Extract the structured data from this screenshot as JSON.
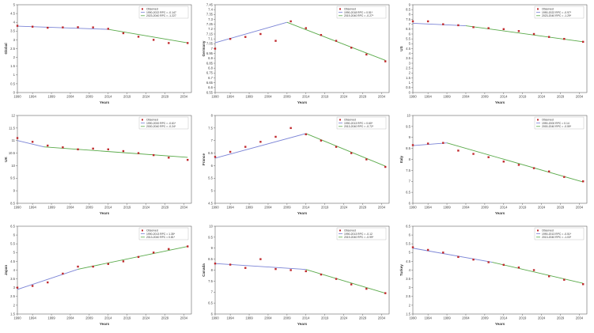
{
  "colors": {
    "blue": "#7b84d6",
    "green": "#5aaa4a",
    "red": "#c0282c",
    "axis": "#444444",
    "grid": "#d9d9d9"
  },
  "chart_data": [
    {
      "type": "line",
      "ylabel": "Global",
      "xlabel": "Years",
      "xlim": [
        1990,
        2036
      ],
      "ylim": [
        0,
        5
      ],
      "x_ticks": [
        1990,
        1994,
        1999,
        2004,
        2009,
        2014,
        2019,
        2024,
        2029,
        2034
      ],
      "y_ticks": [
        0,
        0.5,
        1,
        1.5,
        2,
        2.5,
        3,
        3.5,
        4,
        4.5,
        5
      ],
      "observed": {
        "x": [
          1990,
          1994,
          1998,
          2002,
          2006,
          2010,
          2014,
          2018,
          2022,
          2026,
          2030,
          2035
        ],
        "y": [
          3.8,
          3.75,
          3.69,
          3.71,
          3.72,
          3.71,
          3.63,
          3.38,
          3.18,
          3.0,
          2.82,
          2.82
        ]
      },
      "fit_segments": [
        {
          "x": [
            1990,
            2014
          ],
          "y": [
            3.78,
            3.6
          ]
        },
        {
          "x": [
            2014,
            2035
          ],
          "y": [
            3.6,
            2.83
          ]
        }
      ],
      "legend": [
        "Observed",
        "1990-2022 RPC = -0.147",
        "2023-2040 RPC = -1.227"
      ]
    },
    {
      "type": "line",
      "ylabel": "Germany",
      "xlabel": "Years",
      "xlim": [
        1990,
        2036
      ],
      "ylim": [
        6.55,
        7.45
      ],
      "x_ticks": [
        1990,
        1994,
        1999,
        2004,
        2009,
        2014,
        2019,
        2024,
        2029,
        2034
      ],
      "y_ticks": [
        6.55,
        6.6,
        6.65,
        6.7,
        6.75,
        6.8,
        6.85,
        6.9,
        6.95,
        7.0,
        7.05,
        7.1,
        7.15,
        7.2,
        7.25,
        7.3,
        7.35,
        7.4,
        7.45
      ],
      "observed": {
        "x": [
          1990,
          1994,
          1998,
          2002,
          2006,
          2010,
          2014,
          2018,
          2022,
          2026,
          2030,
          2035
        ],
        "y": [
          7.0,
          7.1,
          7.12,
          7.15,
          7.08,
          7.28,
          7.21,
          7.14,
          7.08,
          7.01,
          6.94,
          6.87
        ]
      },
      "fit_segments": [
        {
          "x": [
            1990,
            2009
          ],
          "y": [
            7.06,
            7.27
          ]
        },
        {
          "x": [
            2009,
            2035
          ],
          "y": [
            7.27,
            6.88
          ]
        }
      ],
      "legend": [
        "Observed",
        "1990-2018 RPC = 0.51*",
        "2019-2040 RPC = -0.27*"
      ]
    },
    {
      "type": "line",
      "ylabel": "US",
      "xlabel": "Years",
      "xlim": [
        1990,
        2036
      ],
      "ylim": [
        0,
        9
      ],
      "x_ticks": [
        1990,
        1994,
        1999,
        2004,
        2009,
        2014,
        2019,
        2024,
        2029,
        2034
      ],
      "y_ticks": [
        0,
        0.5,
        1,
        1.5,
        2,
        2.5,
        3,
        3.5,
        4,
        4.5,
        5,
        5.5,
        6,
        6.5,
        7,
        7.5,
        8,
        8.5,
        9
      ],
      "observed": {
        "x": [
          1990,
          1994,
          1998,
          2002,
          2006,
          2010,
          2014,
          2018,
          2022,
          2026,
          2030,
          2035
        ],
        "y": [
          7.3,
          7.3,
          7.0,
          6.9,
          6.7,
          6.6,
          6.5,
          6.3,
          6.0,
          5.7,
          5.5,
          5.2
        ]
      },
      "fit_segments": [
        {
          "x": [
            1990,
            2004
          ],
          "y": [
            7.1,
            6.85
          ]
        },
        {
          "x": [
            2004,
            2035
          ],
          "y": [
            6.85,
            5.2
          ]
        }
      ],
      "legend": [
        "Observed",
        "1990-2022 RPC = -0.97*",
        "2023-2040 RPC = -1.29*"
      ]
    },
    {
      "type": "line",
      "ylabel": "UK",
      "xlabel": "Years",
      "xlim": [
        1990,
        2036
      ],
      "ylim": [
        8.5,
        12
      ],
      "x_ticks": [
        1990,
        1994,
        1999,
        2004,
        2009,
        2014,
        2019,
        2024,
        2029,
        2034
      ],
      "y_ticks": [
        8.5,
        9,
        9.5,
        10,
        10.5,
        11,
        11.5,
        12
      ],
      "observed": {
        "x": [
          1990,
          1994,
          1998,
          2002,
          2006,
          2010,
          2014,
          2018,
          2022,
          2026,
          2030,
          2035
        ],
        "y": [
          11.1,
          10.95,
          10.8,
          10.73,
          10.65,
          10.68,
          10.65,
          10.58,
          10.5,
          10.42,
          10.32,
          10.23
        ]
      },
      "fit_segments": [
        {
          "x": [
            1990,
            1997
          ],
          "y": [
            11.0,
            10.75
          ]
        },
        {
          "x": [
            1997,
            2035
          ],
          "y": [
            10.75,
            10.33
          ]
        }
      ],
      "legend": [
        "Observed",
        "1990-2000 RPC = -0.61*",
        "2000-2040 RPC = -0.24*"
      ]
    },
    {
      "type": "line",
      "ylabel": "France",
      "xlabel": "Years",
      "xlim": [
        1990,
        2036
      ],
      "ylim": [
        4.5,
        8
      ],
      "x_ticks": [
        1990,
        1994,
        1999,
        2004,
        2009,
        2014,
        2019,
        2024,
        2029,
        2034
      ],
      "y_ticks": [
        4.5,
        5,
        5.5,
        6,
        6.5,
        7,
        7.5,
        8
      ],
      "observed": {
        "x": [
          1990,
          1994,
          1998,
          2002,
          2006,
          2010,
          2014,
          2018,
          2022,
          2026,
          2030,
          2035
        ],
        "y": [
          6.35,
          6.55,
          6.75,
          6.95,
          7.15,
          7.5,
          7.25,
          7.0,
          6.75,
          6.5,
          6.25,
          5.95
        ]
      },
      "fit_segments": [
        {
          "x": [
            1990,
            2014
          ],
          "y": [
            6.3,
            7.28
          ]
        },
        {
          "x": [
            2014,
            2035
          ],
          "y": [
            7.28,
            5.98
          ]
        }
      ],
      "legend": [
        "Observed",
        "1990-2013 RPC = 0.60*",
        "2013-2040 RPC = -0.72*"
      ]
    },
    {
      "type": "line",
      "ylabel": "Italy",
      "xlabel": "Years",
      "xlim": [
        1990,
        2036
      ],
      "ylim": [
        6.0,
        10.0
      ],
      "x_ticks": [
        1990,
        1994,
        1999,
        2004,
        2009,
        2014,
        2019,
        2024,
        2029,
        2034
      ],
      "y_ticks": [
        6.0,
        6.5,
        7.0,
        7.5,
        8.0,
        8.5,
        9.0,
        9.5,
        10.0
      ],
      "observed": {
        "x": [
          1990,
          1994,
          1998,
          2002,
          2006,
          2010,
          2014,
          2018,
          2022,
          2026,
          2030,
          2035
        ],
        "y": [
          8.65,
          8.72,
          8.75,
          8.4,
          8.25,
          8.1,
          7.9,
          7.75,
          7.6,
          7.45,
          7.2,
          7.0
        ]
      },
      "fit_segments": [
        {
          "x": [
            1990,
            1999
          ],
          "y": [
            8.63,
            8.75
          ]
        },
        {
          "x": [
            1999,
            2035
          ],
          "y": [
            8.75,
            6.97
          ]
        }
      ],
      "legend": [
        "Observed",
        "1990-2000 RPC = 0.14",
        "2000-2040 RPC = -0.59*"
      ]
    },
    {
      "type": "line",
      "ylabel": "Japan",
      "xlabel": "Years",
      "xlim": [
        1990,
        2036
      ],
      "ylim": [
        1.5,
        6.5
      ],
      "x_ticks": [
        1990,
        1994,
        1999,
        2004,
        2009,
        2014,
        2019,
        2024,
        2029,
        2034
      ],
      "y_ticks": [
        1.5,
        2,
        2.5,
        3,
        3.5,
        4,
        4.5,
        5,
        5.5,
        6,
        6.5
      ],
      "observed": {
        "x": [
          1990,
          1994,
          1998,
          2002,
          2006,
          2010,
          2014,
          2018,
          2022,
          2026,
          2030,
          2035
        ],
        "y": [
          3.0,
          3.1,
          3.3,
          3.8,
          4.2,
          4.2,
          4.35,
          4.5,
          4.75,
          5.0,
          5.2,
          5.35
        ]
      },
      "fit_segments": [
        {
          "x": [
            1990,
            2006
          ],
          "y": [
            2.9,
            4.05
          ]
        },
        {
          "x": [
            2006,
            2035
          ],
          "y": [
            4.05,
            5.35
          ]
        }
      ],
      "legend": [
        "Observed",
        "1990-2013 RPC = 1.35*",
        "2013-2040 RPC = 0.81*"
      ]
    },
    {
      "type": "line",
      "ylabel": "Canada",
      "xlabel": "Years",
      "xlim": [
        1990,
        2036
      ],
      "ylim": [
        6,
        10
      ],
      "x_ticks": [
        1990,
        1994,
        1999,
        2004,
        2009,
        2014,
        2019,
        2024,
        2029,
        2034
      ],
      "y_ticks": [
        6,
        6.5,
        7,
        7.5,
        8,
        8.5,
        9,
        9.5,
        10
      ],
      "observed": {
        "x": [
          1990,
          1994,
          1998,
          2002,
          2006,
          2010,
          2014,
          2018,
          2022,
          2026,
          2030,
          2035
        ],
        "y": [
          8.3,
          8.25,
          8.1,
          8.5,
          8.05,
          8.0,
          7.95,
          7.8,
          7.6,
          7.35,
          7.15,
          6.95
        ]
      },
      "fit_segments": [
        {
          "x": [
            1990,
            2014
          ],
          "y": [
            8.3,
            8.03
          ]
        },
        {
          "x": [
            2014,
            2035
          ],
          "y": [
            8.03,
            6.95
          ]
        }
      ],
      "legend": [
        "Observed",
        "1990-2013 RPC = -0.12",
        "2019-2040 RPC = -0.99*"
      ]
    },
    {
      "type": "line",
      "ylabel": "Turkey",
      "xlabel": "Years",
      "xlim": [
        1990,
        2036
      ],
      "ylim": [
        1.5,
        6.5
      ],
      "x_ticks": [
        1990,
        1994,
        1999,
        2004,
        2009,
        2014,
        2019,
        2024,
        2029,
        2034
      ],
      "y_ticks": [
        1.5,
        2,
        2.5,
        3,
        3.5,
        4,
        4.5,
        5,
        5.5,
        6,
        6.5
      ],
      "observed": {
        "x": [
          1990,
          1994,
          1998,
          2002,
          2006,
          2010,
          2014,
          2018,
          2022,
          2026,
          2030,
          2035
        ],
        "y": [
          5.3,
          5.15,
          5.0,
          4.75,
          4.6,
          4.45,
          4.3,
          4.15,
          4.0,
          3.65,
          3.45,
          3.2
        ]
      },
      "fit_segments": [
        {
          "x": [
            1990,
            2011
          ],
          "y": [
            5.25,
            4.45
          ]
        },
        {
          "x": [
            2011,
            2035
          ],
          "y": [
            4.45,
            3.25
          ]
        }
      ],
      "legend": [
        "Observed",
        "1990-2013 RPC = -0.51*",
        "2013-2040 RPC = -1.03*"
      ]
    }
  ]
}
